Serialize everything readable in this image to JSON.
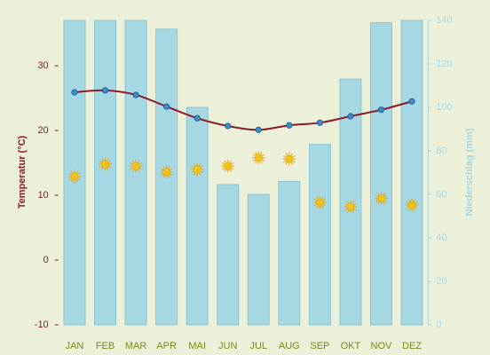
{
  "chart_data": {
    "type": "bar",
    "categories": [
      "JAN",
      "FEB",
      "MAR",
      "APR",
      "MAI",
      "JUN",
      "JUL",
      "AUG",
      "SEP",
      "OKT",
      "NOV",
      "DEZ"
    ],
    "y_label": "Temperatur (°C)",
    "y2_label": "Niederschlag (mm)",
    "ylim": [
      -10,
      37
    ],
    "yticks": [
      -10,
      0,
      10,
      20,
      30
    ],
    "y2lim": [
      0,
      140
    ],
    "y2ticks": [
      0,
      20,
      40,
      60,
      80,
      100,
      120,
      140
    ],
    "series": [
      {
        "type": "bar",
        "axis": "y2",
        "color": "#a6d8e4",
        "values": [
          140,
          140,
          140,
          136,
          100,
          64.5,
          60,
          66,
          83,
          113,
          139,
          140
        ]
      },
      {
        "type": "line",
        "color": "#8b1a2a",
        "values": [
          25.9,
          26.2,
          25.5,
          23.7,
          21.9,
          20.7,
          20.1,
          20.8,
          21.2,
          22.2,
          23.2,
          24.5
        ]
      },
      {
        "type": "sun",
        "color": "#f2c21a",
        "values": [
          12.9,
          14.8,
          14.5,
          13.6,
          14.0,
          14.5,
          15.8,
          15.6,
          8.9,
          8.2,
          9.5,
          8.5
        ]
      }
    ]
  }
}
